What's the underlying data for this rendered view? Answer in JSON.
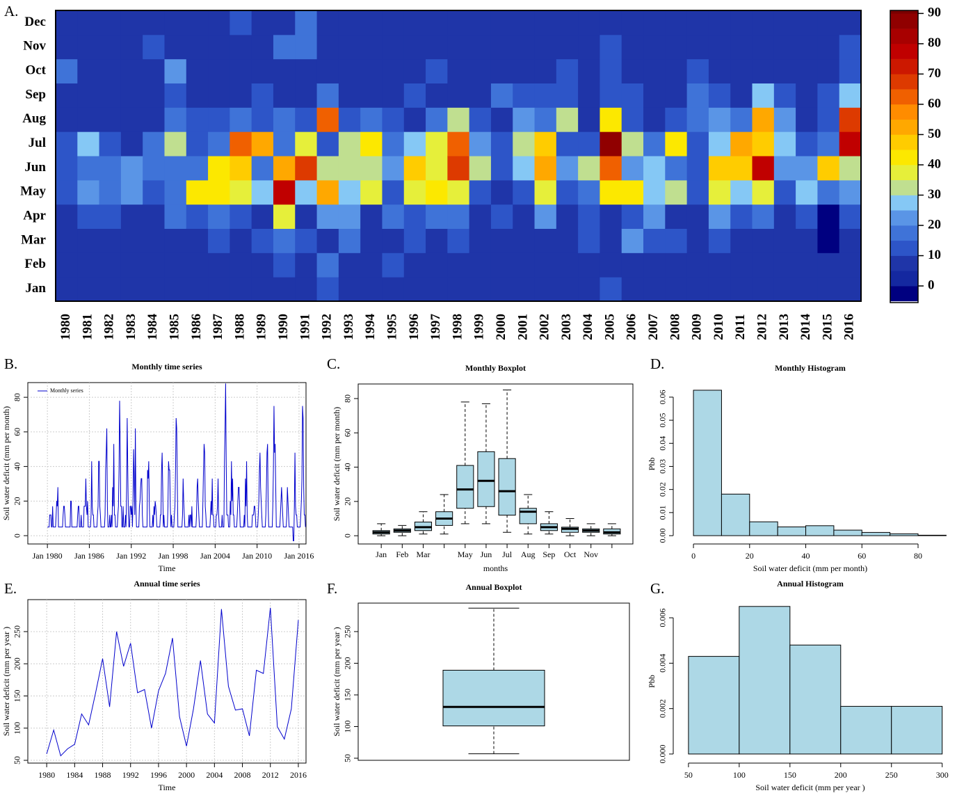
{
  "chart_data": [
    {
      "type": "heatmap",
      "panel": "A.",
      "x": [
        1980,
        1981,
        1982,
        1983,
        1984,
        1985,
        1986,
        1987,
        1988,
        1989,
        1990,
        1991,
        1992,
        1993,
        1994,
        1995,
        1996,
        1997,
        1998,
        1999,
        2000,
        2001,
        2002,
        2003,
        2004,
        2005,
        2006,
        2007,
        2008,
        2009,
        2010,
        2011,
        2012,
        2013,
        2014,
        2015,
        2016
      ],
      "y": [
        "Jan",
        "Feb",
        "Mar",
        "Apr",
        "May",
        "Jun",
        "Jul",
        "Aug",
        "Sep",
        "Oct",
        "Nov",
        "Dec"
      ],
      "values": [
        [
          5,
          5,
          5,
          5,
          12,
          12,
          12,
          5,
          5,
          17,
          5,
          5
        ],
        [
          5,
          5,
          5,
          12,
          20,
          17,
          28,
          5,
          5,
          5,
          5,
          5
        ],
        [
          5,
          5,
          5,
          12,
          17,
          17,
          12,
          5,
          5,
          5,
          5,
          5
        ],
        [
          5,
          5,
          5,
          5,
          20,
          20,
          5,
          5,
          5,
          5,
          5,
          5
        ],
        [
          5,
          5,
          5,
          5,
          12,
          17,
          17,
          5,
          5,
          5,
          12,
          5
        ],
        [
          5,
          5,
          5,
          17,
          17,
          17,
          33,
          17,
          12,
          20,
          5,
          5
        ],
        [
          5,
          5,
          5,
          12,
          43,
          17,
          12,
          12,
          5,
          5,
          5,
          5
        ],
        [
          5,
          5,
          12,
          17,
          43,
          43,
          17,
          12,
          5,
          5,
          5,
          5
        ],
        [
          5,
          5,
          5,
          12,
          38,
          48,
          62,
          17,
          5,
          5,
          5,
          12
        ],
        [
          5,
          5,
          12,
          5,
          28,
          17,
          53,
          12,
          12,
          5,
          5,
          5
        ],
        [
          5,
          12,
          17,
          38,
          78,
          53,
          17,
          17,
          5,
          5,
          17,
          5
        ],
        [
          5,
          5,
          12,
          5,
          28,
          68,
          38,
          12,
          5,
          5,
          17,
          17
        ],
        [
          12,
          17,
          5,
          20,
          50,
          33,
          12,
          62,
          17,
          5,
          5,
          5
        ],
        [
          5,
          5,
          17,
          20,
          28,
          33,
          33,
          12,
          5,
          5,
          5,
          5
        ],
        [
          5,
          5,
          5,
          5,
          38,
          33,
          43,
          17,
          5,
          5,
          5,
          5
        ],
        [
          5,
          12,
          5,
          17,
          12,
          20,
          17,
          12,
          5,
          5,
          5,
          5
        ],
        [
          5,
          5,
          12,
          12,
          38,
          48,
          28,
          5,
          12,
          5,
          5,
          5
        ],
        [
          5,
          5,
          5,
          17,
          43,
          38,
          38,
          17,
          5,
          12,
          5,
          5
        ],
        [
          5,
          5,
          12,
          17,
          38,
          68,
          62,
          33,
          5,
          5,
          5,
          5
        ],
        [
          5,
          5,
          5,
          5,
          12,
          33,
          20,
          12,
          5,
          5,
          5,
          5
        ],
        [
          5,
          5,
          5,
          12,
          5,
          12,
          12,
          5,
          17,
          5,
          5,
          5
        ],
        [
          5,
          5,
          5,
          5,
          12,
          28,
          33,
          20,
          12,
          5,
          5,
          5
        ],
        [
          5,
          5,
          5,
          20,
          38,
          53,
          48,
          17,
          12,
          5,
          5,
          5
        ],
        [
          5,
          5,
          5,
          5,
          12,
          20,
          12,
          33,
          12,
          12,
          5,
          5
        ],
        [
          5,
          5,
          12,
          12,
          17,
          33,
          12,
          5,
          5,
          5,
          5,
          5
        ],
        [
          12,
          5,
          5,
          5,
          43,
          62,
          88,
          43,
          12,
          12,
          12,
          5
        ],
        [
          5,
          5,
          20,
          12,
          43,
          20,
          33,
          12,
          12,
          5,
          5,
          5
        ],
        [
          5,
          5,
          12,
          20,
          28,
          28,
          17,
          5,
          5,
          5,
          5,
          5
        ],
        [
          5,
          5,
          12,
          5,
          33,
          17,
          43,
          12,
          5,
          5,
          5,
          5
        ],
        [
          5,
          5,
          5,
          5,
          12,
          12,
          12,
          17,
          17,
          12,
          5,
          5
        ],
        [
          5,
          5,
          12,
          20,
          38,
          48,
          28,
          20,
          12,
          5,
          5,
          5
        ],
        [
          5,
          5,
          5,
          12,
          28,
          48,
          53,
          17,
          5,
          5,
          5,
          5
        ],
        [
          5,
          5,
          5,
          17,
          38,
          75,
          48,
          53,
          28,
          5,
          5,
          5
        ],
        [
          5,
          5,
          5,
          5,
          12,
          20,
          28,
          20,
          12,
          5,
          5,
          5
        ],
        [
          5,
          5,
          5,
          12,
          28,
          20,
          12,
          5,
          5,
          5,
          5,
          5
        ],
        [
          5,
          5,
          -3,
          -3,
          17,
          48,
          17,
          12,
          12,
          5,
          5,
          5
        ],
        [
          5,
          5,
          5,
          12,
          20,
          33,
          75,
          68,
          28,
          12,
          12,
          5
        ]
      ],
      "breaks": [
        -5,
        0,
        5,
        10,
        15,
        20,
        25,
        30,
        35,
        40,
        45,
        50,
        55,
        60,
        65,
        70,
        75,
        80,
        85,
        90,
        95
      ],
      "colors": [
        "#000080",
        "#1428a0",
        "#1f35a8",
        "#2d55c8",
        "#3f73d8",
        "#5a95e6",
        "#85c8f5",
        "#c0df90",
        "#e6ef3a",
        "#fce800",
        "#ffcc00",
        "#ffa800",
        "#ff8c00",
        "#f06000",
        "#dd3a00",
        "#cc1800",
        "#c00000",
        "#a80000",
        "#900000",
        "#7a0000"
      ],
      "zlim": [
        -5.5,
        91
      ],
      "zticks": [
        0,
        10,
        20,
        30,
        40,
        50,
        60,
        70,
        80,
        90
      ]
    },
    {
      "type": "line",
      "panel": "B.",
      "title": "Monthly time series",
      "xlabel": "Time",
      "ylabel": "Soil water deficit (mm per month)",
      "series": [
        {
          "name": "Monthly series",
          "color": "#0000cc"
        }
      ],
      "xlim": [
        1977.2,
        2017
      ],
      "ylim": [
        -4.8,
        88.5
      ],
      "xticks": [
        {
          "value": 1980,
          "label": "Jan 1980"
        },
        {
          "value": 1986,
          "label": "Jan 1986"
        },
        {
          "value": 1992,
          "label": "Jan 1992"
        },
        {
          "value": 1998,
          "label": "Jan 1998"
        },
        {
          "value": 2004,
          "label": "Jan 2004"
        },
        {
          "value": 2010,
          "label": "Jan 2010"
        },
        {
          "value": 2016,
          "label": "Jan 2016"
        }
      ],
      "yticks": [
        0,
        20,
        40,
        60,
        80
      ],
      "grid": true,
      "frame": true
    },
    {
      "type": "box",
      "panel": "C.",
      "title": "Monthly Boxplot",
      "xlabel": "months",
      "ylabel": "Soil water deficit (mm per month)",
      "categories": [
        "Jan",
        "Feb",
        "Mar",
        null,
        "May",
        "Jun",
        "Jul",
        "Aug",
        "Sep",
        "Oct",
        "Nov",
        null
      ],
      "stats": [
        [
          0,
          1,
          2,
          3,
          7
        ],
        [
          0,
          2,
          3,
          4,
          6
        ],
        [
          1,
          3,
          5,
          8,
          14
        ],
        [
          1,
          6,
          10,
          14,
          24
        ],
        [
          7,
          16,
          27,
          41,
          78
        ],
        [
          7,
          17,
          32,
          49,
          77
        ],
        [
          2,
          12,
          26,
          45,
          85
        ],
        [
          1,
          7,
          14,
          16,
          24
        ],
        [
          1,
          3,
          5,
          7,
          14
        ],
        [
          0,
          2,
          4,
          5,
          10
        ],
        [
          0,
          2,
          3,
          4,
          7
        ],
        [
          0,
          1,
          2,
          4,
          7
        ]
      ],
      "color": "#add8e6",
      "ylim": [
        -4.8,
        88.5
      ],
      "yticks": [
        0,
        20,
        40,
        60,
        80
      ],
      "frame": true
    },
    {
      "type": "histogram",
      "panel": "D.",
      "title": "Monthly Histogram",
      "xlabel": "Soil water deficit (mm per month)",
      "ylabel": "Pbb",
      "bins": [
        0,
        10,
        20,
        30,
        40,
        50,
        60,
        70,
        80,
        90
      ],
      "values": [
        0.063,
        0.018,
        0.006,
        0.0038,
        0.0043,
        0.0024,
        0.0014,
        0.0008,
        0.0002
      ],
      "color": "#add8e6",
      "xlim": [
        -7.2,
        90.4
      ],
      "ylim": [
        -0.0036,
        0.0657
      ],
      "xticks": [
        0,
        20,
        40,
        60,
        80
      ],
      "yticks": [
        {
          "value": 0,
          "label": "0.00"
        },
        {
          "value": 0.01,
          "label": "0.01"
        },
        {
          "value": 0.02,
          "label": "0.02"
        },
        {
          "value": 0.03,
          "label": "0.03"
        },
        {
          "value": 0.04,
          "label": "0.04"
        },
        {
          "value": 0.05,
          "label": "0.05"
        },
        {
          "value": 0.06,
          "label": "0.06"
        }
      ]
    },
    {
      "type": "line",
      "panel": "E.",
      "title": "Annual time series",
      "xlabel": "Time",
      "ylabel": "Soil water deficit (mm per year )",
      "x": [
        1980,
        1981,
        1982,
        1983,
        1984,
        1985,
        1986,
        1987,
        1988,
        1989,
        1990,
        1991,
        1992,
        1993,
        1994,
        1995,
        1996,
        1997,
        1998,
        1999,
        2000,
        2001,
        2002,
        2003,
        2004,
        2005,
        2006,
        2007,
        2008,
        2009,
        2010,
        2011,
        2012,
        2013,
        2014,
        2015,
        2016
      ],
      "series": [
        {
          "color": "#0000cc",
          "values": [
            60,
            97,
            57,
            68,
            75,
            122,
            105,
            155,
            208,
            133,
            250,
            196,
            232,
            155,
            160,
            100,
            158,
            185,
            240,
            118,
            72,
            130,
            205,
            122,
            108,
            285,
            165,
            128,
            130,
            88,
            190,
            185,
            287,
            102,
            83,
            130,
            268
          ]
        }
      ],
      "xlim": [
        1977.3,
        2017.1
      ],
      "ylim": [
        45.7,
        299.7
      ],
      "xticks": [
        1980,
        1984,
        1988,
        1992,
        1996,
        2000,
        2004,
        2008,
        2012,
        2016
      ],
      "yticks": [
        50,
        100,
        150,
        200,
        250
      ],
      "grid": true,
      "frame": true
    },
    {
      "type": "box",
      "panel": "F.",
      "title": "Annual Boxplot",
      "ylabel": "Soil water deficit (mm per year )",
      "stats": [
        [
          57,
          101,
          131,
          189,
          287
        ]
      ],
      "color": "#add8e6",
      "ylim": [
        46.7,
        295
      ],
      "yticks": [
        50,
        100,
        150,
        200,
        250
      ],
      "frame": true
    },
    {
      "type": "histogram",
      "panel": "G.",
      "title": "Annual Histogram",
      "xlabel": "Soil water deficit (mm per year )",
      "ylabel": "Pbb",
      "bins": [
        50,
        100,
        150,
        200,
        250,
        300
      ],
      "values": [
        0.0043,
        0.0065,
        0.0048,
        0.0021,
        0.0021
      ],
      "color": "#add8e6",
      "xlim": [
        35,
        305
      ],
      "ylim": [
        -0.0004,
        0.0068
      ],
      "xticks": [
        50,
        100,
        150,
        200,
        250,
        300
      ],
      "yticks": [
        {
          "value": 0,
          "label": "0.000"
        },
        {
          "value": 0.002,
          "label": "0.002"
        },
        {
          "value": 0.004,
          "label": "0.004"
        },
        {
          "value": 0.006,
          "label": "0.006"
        }
      ]
    }
  ]
}
